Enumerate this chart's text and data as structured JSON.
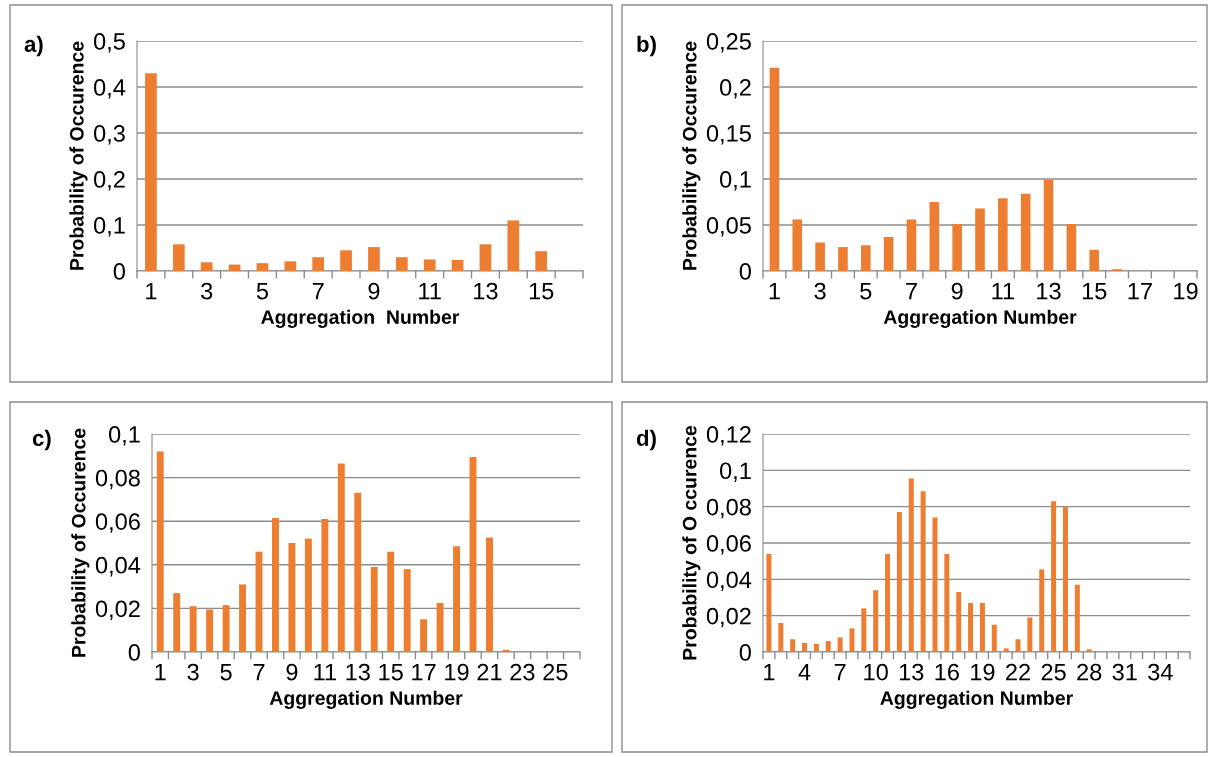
{
  "chart_data": [
    {
      "type": "bar",
      "title": "a)",
      "xlabel": "Aggregation  Number",
      "ylabel": "Probability of Occurence",
      "color": "#ed7d31",
      "grid": "y",
      "categories": [
        "1",
        null,
        "3",
        null,
        "5",
        null,
        "7",
        null,
        "9",
        null,
        "11",
        null,
        "13",
        null,
        "15",
        null
      ],
      "values": [
        0.43,
        0.058,
        0.019,
        0.014,
        0.017,
        0.021,
        0.03,
        0.045,
        0.052,
        0.03,
        0.025,
        0.024,
        0.058,
        0.11,
        0.043,
        0
      ],
      "ylim": [
        0,
        0.5
      ],
      "yticks": [
        0,
        {
          "value": 0.1,
          "label": "0,1"
        },
        {
          "value": 0.2,
          "label": "0,2"
        },
        {
          "value": 0.3,
          "label": "0,3"
        },
        {
          "value": 0.4,
          "label": "0,4"
        },
        {
          "value": 0.5,
          "label": "0,5"
        }
      ]
    },
    {
      "type": "bar",
      "title": "b)",
      "xlabel": "Aggregation Number",
      "ylabel": "Probability of Occurence",
      "color": "#ed7d31",
      "grid": "y",
      "categories": [
        "1",
        null,
        "3",
        null,
        "5",
        null,
        "7",
        null,
        "9",
        null,
        "11",
        null,
        "13",
        null,
        "15",
        null,
        "17",
        null,
        "19"
      ],
      "values": [
        0.221,
        0.056,
        0.031,
        0.026,
        0.028,
        0.037,
        0.056,
        0.075,
        0.051,
        0.068,
        0.079,
        0.084,
        0.099,
        0.051,
        0.023,
        0.002,
        0,
        0,
        0
      ],
      "ylim": [
        0,
        0.25
      ],
      "yticks": [
        0,
        {
          "value": 0.05,
          "label": "0,05"
        },
        {
          "value": 0.1,
          "label": "0,1"
        },
        {
          "value": 0.15,
          "label": "0,15"
        },
        {
          "value": 0.2,
          "label": "0,2"
        },
        {
          "value": 0.25,
          "label": "0,25"
        }
      ]
    },
    {
      "type": "bar",
      "title": "c)",
      "xlabel": "Aggregation Number",
      "ylabel": "Probability of Occurence",
      "color": "#ed7d31",
      "grid": "y",
      "categories": [
        "1",
        null,
        "3",
        null,
        "5",
        null,
        "7",
        null,
        "9",
        null,
        "11",
        null,
        "13",
        null,
        "15",
        null,
        "17",
        null,
        "19",
        null,
        "21",
        null,
        "23",
        null,
        "25",
        null
      ],
      "values": [
        0.092,
        0.027,
        0.021,
        0.0195,
        0.0215,
        0.031,
        0.046,
        0.0615,
        0.05,
        0.052,
        0.061,
        0.0865,
        0.073,
        0.039,
        0.046,
        0.038,
        0.015,
        0.0225,
        0.0485,
        0.0895,
        0.0525,
        0.001,
        0,
        0,
        0,
        0
      ],
      "ylim": [
        0,
        0.1
      ],
      "yticks": [
        0,
        {
          "value": 0.02,
          "label": "0,02"
        },
        {
          "value": 0.04,
          "label": "0,04"
        },
        {
          "value": 0.06,
          "label": "0,06"
        },
        {
          "value": 0.08,
          "label": "0,08"
        },
        {
          "value": 0.1,
          "label": "0,1"
        }
      ]
    },
    {
      "type": "bar",
      "title": "d)",
      "xlabel": "Aggregation Number",
      "ylabel": "Probability of O ccurence",
      "color": "#ed7d31",
      "grid": "y",
      "categories": [
        "1",
        null,
        null,
        "4",
        null,
        null,
        "7",
        null,
        null,
        "10",
        null,
        null,
        "13",
        null,
        null,
        "16",
        null,
        null,
        "19",
        null,
        null,
        "22",
        null,
        null,
        "25",
        null,
        null,
        "28",
        null,
        null,
        "31",
        null,
        null,
        "34",
        null,
        null
      ],
      "values": [
        0.054,
        0.016,
        0.007,
        0.005,
        0.0045,
        0.006,
        0.008,
        0.013,
        0.024,
        0.034,
        0.054,
        0.077,
        0.0955,
        0.0885,
        0.074,
        0.054,
        0.033,
        0.027,
        0.027,
        0.015,
        0.002,
        0.007,
        0.019,
        0.0455,
        0.083,
        0.08,
        0.037,
        0.0015,
        0,
        0,
        0,
        0,
        0,
        0,
        0,
        0
      ],
      "ylim": [
        0,
        0.12
      ],
      "yticks": [
        0,
        {
          "value": 0.02,
          "label": "0,02"
        },
        {
          "value": 0.04,
          "label": "0,04"
        },
        {
          "value": 0.06,
          "label": "0,06"
        },
        {
          "value": 0.08,
          "label": "0,08"
        },
        {
          "value": 0.1,
          "label": "0,1"
        },
        {
          "value": 0.12,
          "label": "0,12"
        }
      ]
    }
  ]
}
